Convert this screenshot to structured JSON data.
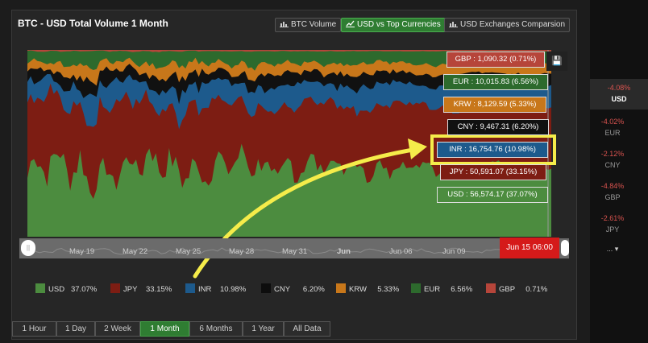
{
  "title": "BTC - USD Total Volume 1 Month",
  "top_buttons": [
    {
      "label": "BTC Volume",
      "active": false,
      "icon": "bar-chart-icon"
    },
    {
      "label": "USD vs Top Currencies",
      "active": true,
      "icon": "line-chart-icon"
    },
    {
      "label": "USD Exchanges Comparsion",
      "active": false,
      "icon": "bar-chart-icon"
    }
  ],
  "chart_data": {
    "type": "area",
    "stacked_percent": true,
    "y_ticks": [
      "20",
      "40",
      "60",
      "80"
    ],
    "ylim": [
      0,
      100
    ],
    "colors": {
      "USD": "#4c8c3f",
      "JPY": "#7d1d13",
      "INR": "#1d5a8c",
      "CNY": "#111111",
      "KRW": "#c8771a",
      "EUR": "#2d6a2d",
      "GBP": "#b6453a"
    },
    "series": [
      {
        "name": "USD",
        "percent": 37.07,
        "value": "56,574.17"
      },
      {
        "name": "JPY",
        "percent": 33.15,
        "value": "50,591.07"
      },
      {
        "name": "INR",
        "percent": 10.98,
        "value": "16,754.76"
      },
      {
        "name": "CNY",
        "percent": 6.2,
        "value": "9,467.31"
      },
      {
        "name": "KRW",
        "percent": 5.33,
        "value": "8,129.59"
      },
      {
        "name": "EUR",
        "percent": 6.56,
        "value": "10,015.83"
      },
      {
        "name": "GBP",
        "percent": 0.71,
        "value": "1,090.32"
      }
    ]
  },
  "tooltips": {
    "gbp": "GBP : 1,090.32 (0.71%)",
    "eur": "EUR : 10,015.83 (6.56%)",
    "krw": "KRW : 8,129.59 (5.33%)",
    "cny": "CNY : 9,467.31 (6.20%)",
    "inr": "INR : 16,754.76 (10.98%)",
    "jpy": "JPY : 50,591.07 (33.15%)",
    "usd": "USD : 56,574.17 (37.07%)"
  },
  "navigator": {
    "labels": [
      "May 19",
      "May 22",
      "May 25",
      "May 28",
      "May 31",
      "Jun",
      "Jun 06",
      "Jun 09"
    ],
    "current_date": "Jun 15 06:00"
  },
  "legend": [
    {
      "name": "USD",
      "pct": "37.07%"
    },
    {
      "name": "JPY",
      "pct": "33.15%"
    },
    {
      "name": "INR",
      "pct": "10.98%"
    },
    {
      "name": "CNY",
      "pct": "6.20%"
    },
    {
      "name": "KRW",
      "pct": "5.33%"
    },
    {
      "name": "EUR",
      "pct": "6.56%"
    },
    {
      "name": "GBP",
      "pct": "0.71%"
    }
  ],
  "ranges": [
    {
      "label": "1 Hour",
      "active": false
    },
    {
      "label": "1 Day",
      "active": false
    },
    {
      "label": "2 Week",
      "active": false
    },
    {
      "label": "1 Month",
      "active": true
    },
    {
      "label": "6 Months",
      "active": false
    },
    {
      "label": "1 Year",
      "active": false
    },
    {
      "label": "All Data",
      "active": false
    }
  ],
  "sidebar": {
    "items": [
      {
        "pct": "-4.08%",
        "code": "USD",
        "active": true
      },
      {
        "pct": "-4.02%",
        "code": "EUR",
        "active": false
      },
      {
        "pct": "-2.12%",
        "code": "CNY",
        "active": false
      },
      {
        "pct": "-4.84%",
        "code": "GBP",
        "active": false
      },
      {
        "pct": "-2.61%",
        "code": "JPY",
        "active": false
      }
    ],
    "more": "..."
  }
}
